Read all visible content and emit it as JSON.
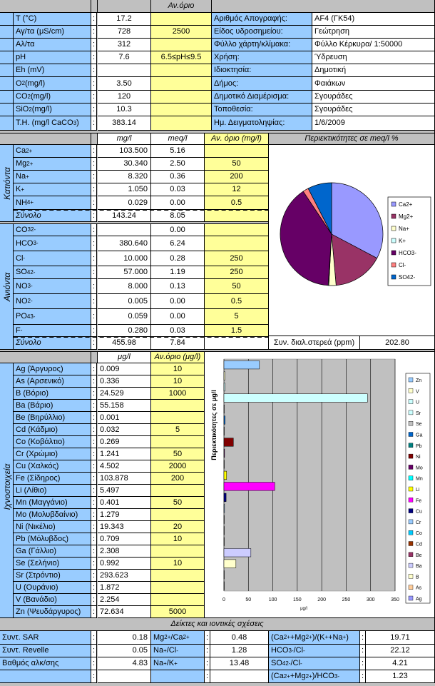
{
  "general": {
    "limit_header": "Αν.όριο",
    "rows": [
      {
        "label": "T (°C)",
        "value": "17.2",
        "limit": ""
      },
      {
        "label": "Αγ/τα (μS/cm)",
        "value": "728",
        "limit": "2500"
      },
      {
        "label": "Αλ/τα",
        "value": "312",
        "limit": ""
      },
      {
        "label": "pH",
        "value": "7.6",
        "limit": "6.5≤pH≤9.5"
      },
      {
        "label": "Eh (mV)",
        "value": "",
        "limit": ""
      },
      {
        "label": "O2 (mg/l)",
        "value": "3.50",
        "limit": ""
      },
      {
        "label": "CO2 (mg/l)",
        "value": "120",
        "limit": ""
      },
      {
        "label": "SiO2 (mg/l)",
        "value": "10.3",
        "limit": ""
      },
      {
        "label": "T.H. (mg/l CaCO3)",
        "value": "383.14",
        "limit": ""
      }
    ]
  },
  "info": [
    {
      "label": "Αριθμός Απογραφής:",
      "value": "AF4 (ΓΚ54)"
    },
    {
      "label": "Είδος υδροσημείου:",
      "value": "Γεώτρηση"
    },
    {
      "label": "Φύλλο χάρτη/κλίμακα:",
      "value": "Φύλλο Κέρκυρα/ 1:50000"
    },
    {
      "label": "Χρήση:",
      "value": "Ύδρευση"
    },
    {
      "label": "Ιδιοκτησία:",
      "value": "Δημοτική"
    },
    {
      "label": "Δήμος:",
      "value": "Φαιάκων"
    },
    {
      "label": "Δημοτικό Διαμέρισμα:",
      "value": "Σγουράδες"
    },
    {
      "label": "Τοποθεσία:",
      "value": "Σγουράδες"
    },
    {
      "label": "Ημ. Δειγματοληψίας:",
      "value": "1/6/2009"
    }
  ],
  "ions": {
    "headers": {
      "mgl": "mg/l",
      "meql": "meq/l",
      "limit": "Αν. όριο (mg/l)"
    },
    "cations_label": "Κατιόντα",
    "anions_label": "Ανιόντα",
    "cations": [
      {
        "label": "Ca2+",
        "mgl": "103.500",
        "meql": "5.16",
        "limit": ""
      },
      {
        "label": "Mg2+",
        "mgl": "30.340",
        "meql": "2.50",
        "limit": "50"
      },
      {
        "label": "Na+",
        "mgl": "8.320",
        "meql": "0.36",
        "limit": "200"
      },
      {
        "label": "K+",
        "mgl": "1.050",
        "meql": "0.03",
        "limit": "12"
      },
      {
        "label": "NH4+",
        "mgl": "0.029",
        "meql": "0.00",
        "limit": "0.5"
      }
    ],
    "cations_total": {
      "label": "Σύνολο",
      "mgl": "143.24",
      "meql": "8.05"
    },
    "anions": [
      {
        "label": "CO32-",
        "mgl": "",
        "meql": "0.00",
        "limit": ""
      },
      {
        "label": "HCO3-",
        "mgl": "380.640",
        "meql": "6.24",
        "limit": ""
      },
      {
        "label": "Cl-",
        "mgl": "10.000",
        "meql": "0.28",
        "limit": "250"
      },
      {
        "label": "SO42-",
        "mgl": "57.000",
        "meql": "1.19",
        "limit": "250"
      },
      {
        "label": "NO3-",
        "mgl": "8.000",
        "meql": "0.13",
        "limit": "50"
      },
      {
        "label": "NO2-",
        "mgl": "0.005",
        "meql": "0.00",
        "limit": "0.5"
      },
      {
        "label": "PO43-",
        "mgl": "0.059",
        "meql": "0.00",
        "limit": "5"
      },
      {
        "label": "F-",
        "mgl": "0.280",
        "meql": "0.03",
        "limit": "1.5"
      }
    ],
    "anions_total": {
      "label": "Σύνολο",
      "mgl": "455.98",
      "meql": "7.84"
    }
  },
  "pie_title": "Περιεκτικότητες σε meq/l %",
  "tds": {
    "label": "Συν. διαλ.στερεά (ppm)",
    "value": "202.80"
  },
  "trace": {
    "section_label": "Ιχνοστοιχεία",
    "headers": {
      "ugl": "μg/l",
      "limit": "Αν.όριο (μg/l)"
    },
    "rows": [
      {
        "label": "Ag (Άργυρος)",
        "value": "0.009",
        "limit": "10"
      },
      {
        "label": "As (Αρσενικό)",
        "value": "0.336",
        "limit": "10"
      },
      {
        "label": "B (Βόριο)",
        "value": "24.529",
        "limit": "1000"
      },
      {
        "label": "Ba (Βάριο)",
        "value": "55.158",
        "limit": ""
      },
      {
        "label": "Be (Βηρύλλιο)",
        "value": "0.001",
        "limit": ""
      },
      {
        "label": "Cd (Κάδμιο)",
        "value": "0.032",
        "limit": "5"
      },
      {
        "label": "Co (Κοβάλτιο)",
        "value": "0.269",
        "limit": ""
      },
      {
        "label": "Cr (Χρώμιο)",
        "value": "1.241",
        "limit": "50"
      },
      {
        "label": "Cu (Χαλκός)",
        "value": "4.502",
        "limit": "2000"
      },
      {
        "label": "Fe (Σίδηρος)",
        "value": "103.878",
        "limit": "200"
      },
      {
        "label": "Li (Λίθιο)",
        "value": "5.497",
        "limit": ""
      },
      {
        "label": "Mn (Μαγγάνιο)",
        "value": "0.401",
        "limit": "50"
      },
      {
        "label": "Mo (Μολυβδαίνιο)",
        "value": "1.279",
        "limit": ""
      },
      {
        "label": "Ni (Νικέλιο)",
        "value": "19.343",
        "limit": "20"
      },
      {
        "label": "Pb (Μόλυβδος)",
        "value": "0.709",
        "limit": "10"
      },
      {
        "label": "Ga (Γάλλιο)",
        "value": "2.308",
        "limit": ""
      },
      {
        "label": "Se (Σελήνιο)",
        "value": "0.992",
        "limit": "10"
      },
      {
        "label": "Sr (Στρόντιο)",
        "value": "293.623",
        "limit": ""
      },
      {
        "label": "U (Ουράνιο)",
        "value": "1.872",
        "limit": ""
      },
      {
        "label": "V (Βανάδιο)",
        "value": "2.254",
        "limit": ""
      },
      {
        "label": "Zn (Ψευδάργυρος)",
        "value": "72.634",
        "limit": "5000"
      }
    ]
  },
  "indices": {
    "title": "Δείκτες και ιοντικές σχέσεις",
    "rows": [
      {
        "a_label": "Συντ. SAR",
        "a_value": "0.18",
        "b_label": "Mg2+/Ca2+",
        "b_value": "0.48",
        "c_label": "(Ca2++Mg2+)/(K++Na+)",
        "c_value": "19.71"
      },
      {
        "a_label": "Συντ. Revelle",
        "a_value": "0.05",
        "b_label": "Na+/Cl-",
        "b_value": "1.28",
        "c_label": "HCO3-/Cl-",
        "c_value": "22.12"
      },
      {
        "a_label": "Βαθμός αλκ/σης",
        "a_value": "4.83",
        "b_label": "Na+/K+",
        "b_value": "13.48",
        "c_label": "SO42-/Cl-",
        "c_value": "4.21"
      },
      {
        "a_label": "",
        "a_value": "",
        "b_label": "",
        "b_value": "",
        "c_label": "(Ca2++Mg2+)/HCO3-",
        "c_value": "1.23"
      }
    ]
  },
  "chart_data": [
    {
      "type": "pie",
      "title": "Περιεκτικότητες σε meq/l %",
      "categories": [
        "Ca2+",
        "Mg2+",
        "Na+",
        "K+",
        "HCO3-",
        "Cl-",
        "SO42-"
      ],
      "values": [
        5.16,
        2.5,
        0.36,
        0.03,
        6.24,
        0.28,
        1.19
      ],
      "colors": [
        "#9999ff",
        "#993366",
        "#ffffcc",
        "#ccffff",
        "#660066",
        "#ff8080",
        "#0066cc"
      ],
      "legend": "right"
    },
    {
      "type": "bar",
      "orientation": "horizontal",
      "ylabel": "Περιεκτικότητες σε μg/l",
      "xlabel": "μg/l",
      "xlim": [
        0,
        350
      ],
      "xticks": [
        0,
        50,
        100,
        150,
        200,
        250,
        300,
        350
      ],
      "categories": [
        "Zn",
        "V",
        "U",
        "Sr",
        "Se",
        "Ga",
        "Pb",
        "Ni",
        "Mo",
        "Mn",
        "Li",
        "Fe",
        "Cu",
        "Cr",
        "Co",
        "Cd",
        "Be",
        "Ba",
        "B",
        "As",
        "Ag"
      ],
      "values": [
        72.634,
        2.254,
        1.872,
        293.623,
        0.992,
        2.308,
        0.709,
        19.343,
        1.279,
        0.401,
        5.497,
        103.878,
        4.502,
        1.241,
        0.269,
        0.032,
        0.001,
        55.158,
        24.529,
        0.336,
        0.009
      ],
      "colors": [
        "#99ccff",
        "#ffffcc",
        "#ccffff",
        "#ccffff",
        "#c0c0c0",
        "#0066cc",
        "#008080",
        "#800000",
        "#660066",
        "#00ffff",
        "#ffff00",
        "#ff00ff",
        "#000080",
        "#99ccff",
        "#00ccff",
        "#993300",
        "#993366",
        "#ccccff",
        "#ffffcc",
        "#ffcc99",
        "#9999ff"
      ],
      "legend": "right",
      "grid": true
    }
  ]
}
